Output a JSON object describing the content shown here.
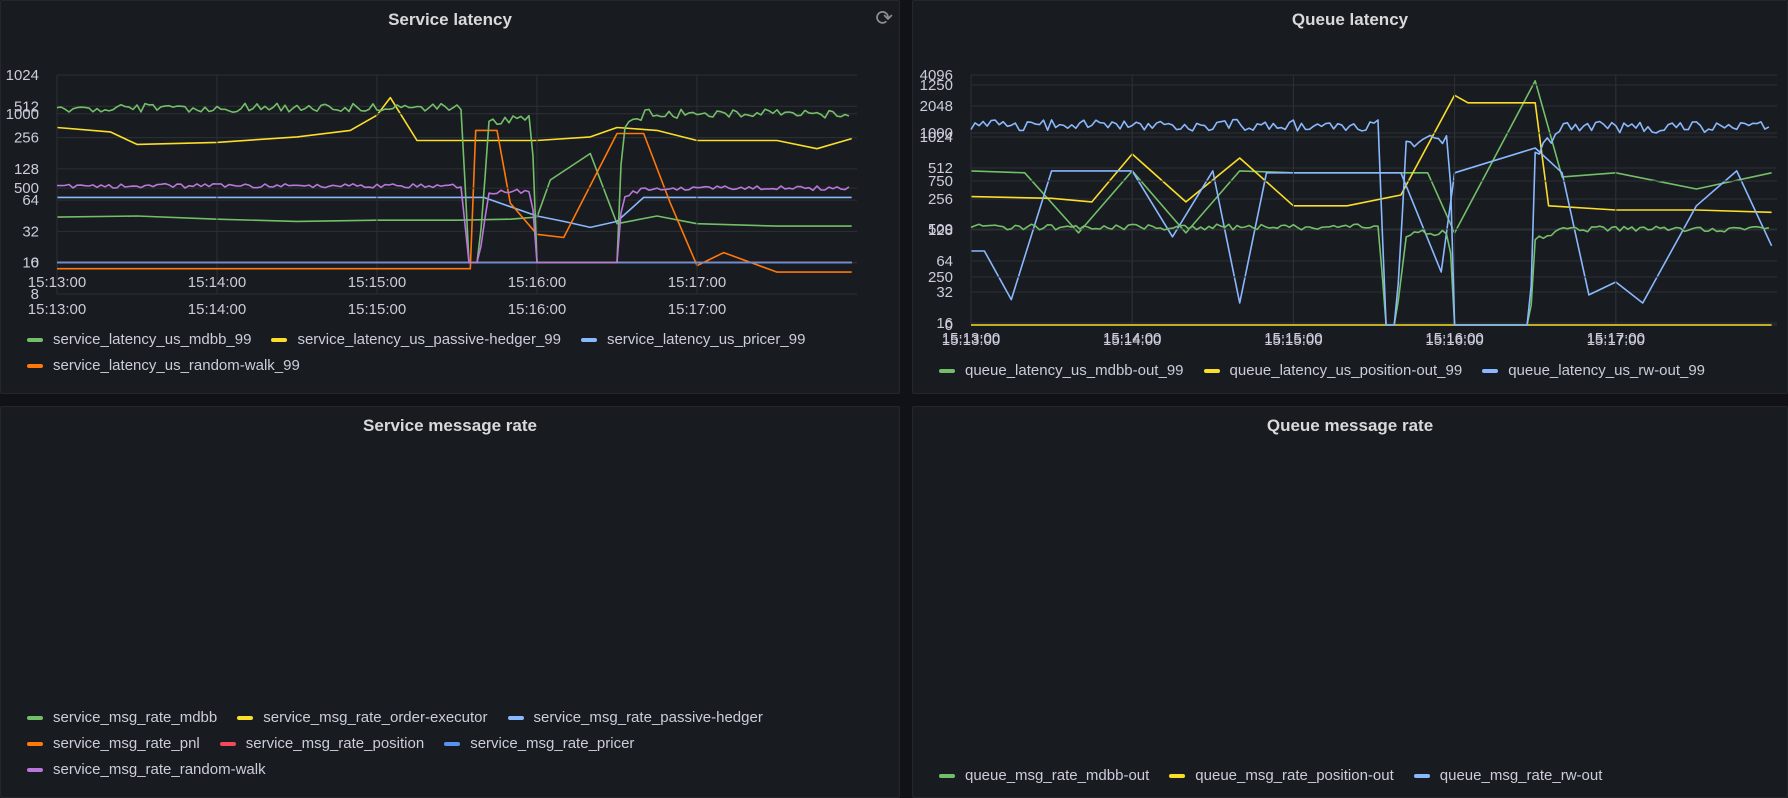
{
  "panels": [
    {
      "title": "Service latency",
      "refresh_icon": "refresh-icon"
    },
    {
      "title": "Queue latency"
    },
    {
      "title": "Service message rate"
    },
    {
      "title": "Queue message rate"
    }
  ],
  "colors": {
    "green": "#73bf69",
    "yellow": "#fade2a",
    "blue": "#8ab8ff",
    "orange": "#ff780a",
    "red": "#f2495c",
    "blue2": "#5794f2",
    "purple": "#b877d9"
  },
  "chart_data": [
    {
      "type": "line",
      "title": "Service latency",
      "y_scale": "log2",
      "x_ticks": [
        "15:13:00",
        "15:14:00",
        "15:15:00",
        "15:16:00",
        "15:17:00"
      ],
      "x_range": [
        "15:13:00",
        "15:18:00"
      ],
      "y_ticks": [
        8,
        16,
        32,
        64,
        128,
        256,
        512,
        1024
      ],
      "ylim": [
        8,
        1024
      ],
      "grid": true,
      "legend_position": "bottom",
      "series": [
        {
          "name": "service_latency_us_mdbb_99",
          "color": "#73bf69",
          "x": [
            "15:13:00",
            "15:13:30",
            "15:14:00",
            "15:14:30",
            "15:15:00",
            "15:15:30",
            "15:15:50",
            "15:16:00",
            "15:16:05",
            "15:16:20",
            "15:16:30",
            "15:16:45",
            "15:17:00",
            "15:17:30",
            "15:17:58"
          ],
          "y": [
            44,
            45,
            42,
            40,
            41,
            41,
            42,
            44,
            100,
            180,
            38,
            45,
            38,
            36,
            36
          ]
        },
        {
          "name": "service_latency_us_passive-hedger_99",
          "color": "#fade2a",
          "x": [
            "15:13:00",
            "15:13:20",
            "15:13:30",
            "15:14:00",
            "15:14:30",
            "15:14:50",
            "15:15:00",
            "15:15:05",
            "15:15:15",
            "15:15:30",
            "15:16:00",
            "15:16:20",
            "15:16:30",
            "15:16:45",
            "15:17:00",
            "15:17:30",
            "15:17:45",
            "15:17:58"
          ],
          "y": [
            320,
            290,
            220,
            230,
            260,
            300,
            420,
            620,
            240,
            240,
            240,
            260,
            320,
            300,
            240,
            240,
            200,
            250
          ]
        },
        {
          "name": "service_latency_us_pricer_99",
          "color": "#8ab8ff",
          "x": [
            "15:13:00",
            "15:15:40",
            "15:16:00",
            "15:16:10",
            "15:16:20",
            "15:16:30",
            "15:16:40",
            "15:17:58"
          ],
          "y": [
            68,
            68,
            45,
            40,
            35,
            40,
            68,
            68
          ]
        },
        {
          "name": "service_latency_us_random-walk_99",
          "color": "#ff780a",
          "x": [
            "15:13:00",
            "15:15:35",
            "15:15:37",
            "15:15:45",
            "15:15:50",
            "15:16:00",
            "15:16:10",
            "15:16:30",
            "15:16:40",
            "15:16:50",
            "15:17:00",
            "15:17:10",
            "15:17:30",
            "15:17:58"
          ],
          "y": [
            14,
            14,
            300,
            300,
            60,
            30,
            28,
            280,
            280,
            60,
            15,
            20,
            13,
            13
          ]
        }
      ]
    },
    {
      "type": "line",
      "title": "Queue latency",
      "y_scale": "log2",
      "x_ticks": [
        "15:13:00",
        "15:14:00",
        "15:15:00",
        "15:16:00",
        "15:17:00"
      ],
      "x_range": [
        "15:13:00",
        "15:18:00"
      ],
      "y_ticks": [
        16,
        32,
        64,
        128,
        256,
        512,
        1024,
        2048,
        4096
      ],
      "ylim": [
        16,
        4096
      ],
      "grid": true,
      "legend_position": "bottom",
      "series": [
        {
          "name": "queue_latency_us_mdbb-out_99",
          "color": "#73bf69",
          "x": [
            "15:13:00",
            "15:13:20",
            "15:13:40",
            "15:14:00",
            "15:14:20",
            "15:14:40",
            "15:15:00",
            "15:15:30",
            "15:15:50",
            "15:16:00",
            "15:16:30",
            "15:16:40",
            "15:17:00",
            "15:17:30",
            "15:17:58"
          ],
          "y": [
            480,
            460,
            120,
            480,
            120,
            480,
            460,
            460,
            460,
            120,
            3600,
            420,
            460,
            320,
            460
          ]
        },
        {
          "name": "queue_latency_us_position-out_99",
          "color": "#fade2a",
          "x": [
            "15:13:00",
            "15:13:30",
            "15:13:45",
            "15:14:00",
            "15:14:20",
            "15:14:40",
            "15:15:00",
            "15:15:20",
            "15:15:40",
            "15:16:00",
            "15:16:05",
            "15:16:30",
            "15:16:35",
            "15:17:00",
            "15:17:30",
            "15:17:58"
          ],
          "y": [
            270,
            260,
            240,
            700,
            240,
            640,
            220,
            220,
            280,
            2600,
            2200,
            2200,
            220,
            200,
            200,
            190
          ]
        },
        {
          "name": "queue_latency_us_rw-out_99",
          "color": "#8ab8ff",
          "x": [
            "15:13:00",
            "15:13:05",
            "15:13:15",
            "15:13:30",
            "15:14:00",
            "15:14:15",
            "15:14:30",
            "15:14:40",
            "15:14:50",
            "15:15:00",
            "15:15:20",
            "15:15:40",
            "15:15:55",
            "15:16:00",
            "15:16:30",
            "15:16:40",
            "15:16:50",
            "15:17:00",
            "15:17:10",
            "15:17:30",
            "15:17:45",
            "15:17:58"
          ],
          "y": [
            80,
            80,
            27,
            480,
            480,
            110,
            480,
            25,
            460,
            460,
            460,
            460,
            50,
            460,
            800,
            460,
            30,
            40,
            25,
            220,
            480,
            90
          ]
        }
      ]
    },
    {
      "type": "line",
      "title": "Service message rate",
      "x_ticks": [
        "15:13:00",
        "15:14:00",
        "15:15:00",
        "15:16:00",
        "15:17:00"
      ],
      "x_range": [
        "15:13:00",
        "15:18:00"
      ],
      "y_ticks": [
        0,
        500,
        1000
      ],
      "ylim": [
        -30,
        1220
      ],
      "grid": true,
      "legend_position": "bottom",
      "series": [
        {
          "name": "service_msg_rate_mdbb",
          "color": "#73bf69",
          "noise": 60,
          "x": [
            "15:13:00",
            "15:15:32",
            "15:15:34",
            "15:15:38",
            "15:15:42",
            "15:15:46",
            "15:15:58",
            "15:16:00",
            "15:16:30",
            "15:16:32",
            "15:16:40",
            "15:17:58"
          ],
          "y": [
            1040,
            1040,
            0,
            0,
            950,
            960,
            960,
            0,
            0,
            880,
            1000,
            1000
          ]
        },
        {
          "name": "service_msg_rate_order-executor",
          "color": "#fade2a",
          "x": [
            "15:13:00",
            "15:17:58"
          ],
          "y": [
            0,
            0
          ]
        },
        {
          "name": "service_msg_rate_passive-hedger",
          "color": "#8ab8ff",
          "x": [
            "15:13:00",
            "15:17:58"
          ],
          "y": [
            0,
            0
          ]
        },
        {
          "name": "service_msg_rate_pnl",
          "color": "#ff780a",
          "x": [
            "15:13:00",
            "15:17:58"
          ],
          "y": [
            0,
            0
          ]
        },
        {
          "name": "service_msg_rate_position",
          "color": "#f2495c",
          "x": [
            "15:13:00",
            "15:17:58"
          ],
          "y": [
            0,
            0
          ]
        },
        {
          "name": "service_msg_rate_pricer",
          "color": "#5794f2",
          "x": [
            "15:13:00",
            "15:17:58"
          ],
          "y": [
            0,
            0
          ]
        },
        {
          "name": "service_msg_rate_random-walk",
          "color": "#b877d9",
          "noise": 30,
          "x": [
            "15:13:00",
            "15:15:32",
            "15:15:34",
            "15:15:38",
            "15:15:42",
            "15:15:46",
            "15:15:58",
            "15:16:00",
            "15:16:30",
            "15:16:32",
            "15:16:40",
            "15:17:58"
          ],
          "y": [
            515,
            515,
            0,
            0,
            470,
            480,
            480,
            0,
            0,
            440,
            500,
            500
          ]
        }
      ]
    },
    {
      "type": "line",
      "title": "Queue message rate",
      "x_ticks": [
        "15:13:00",
        "15:14:00",
        "15:15:00",
        "15:16:00",
        "15:17:00"
      ],
      "x_range": [
        "15:13:00",
        "15:18:00"
      ],
      "y_ticks": [
        0,
        250,
        500,
        750,
        1000,
        1250
      ],
      "ylim": [
        0,
        1250
      ],
      "grid": true,
      "legend_position": "bottom",
      "series": [
        {
          "name": "queue_msg_rate_mdbb-out",
          "color": "#73bf69",
          "noise": 30,
          "x": [
            "15:13:00",
            "15:15:32",
            "15:15:34",
            "15:15:38",
            "15:15:42",
            "15:15:46",
            "15:15:58",
            "15:16:00",
            "15:16:28",
            "15:16:30",
            "15:16:40",
            "15:17:58"
          ],
          "y": [
            510,
            510,
            0,
            0,
            470,
            480,
            480,
            0,
            0,
            440,
            500,
            500
          ]
        },
        {
          "name": "queue_msg_rate_position-out",
          "color": "#fade2a",
          "x": [
            "15:13:00",
            "15:17:58"
          ],
          "y": [
            0,
            0
          ]
        },
        {
          "name": "queue_msg_rate_rw-out",
          "color": "#8ab8ff",
          "noise": 60,
          "x": [
            "15:13:00",
            "15:15:32",
            "15:15:34",
            "15:15:38",
            "15:15:42",
            "15:15:46",
            "15:15:58",
            "15:16:00",
            "15:16:28",
            "15:16:30",
            "15:16:40",
            "15:17:58"
          ],
          "y": [
            1040,
            1040,
            0,
            0,
            950,
            960,
            960,
            0,
            0,
            880,
            1030,
            1030
          ]
        }
      ]
    }
  ]
}
